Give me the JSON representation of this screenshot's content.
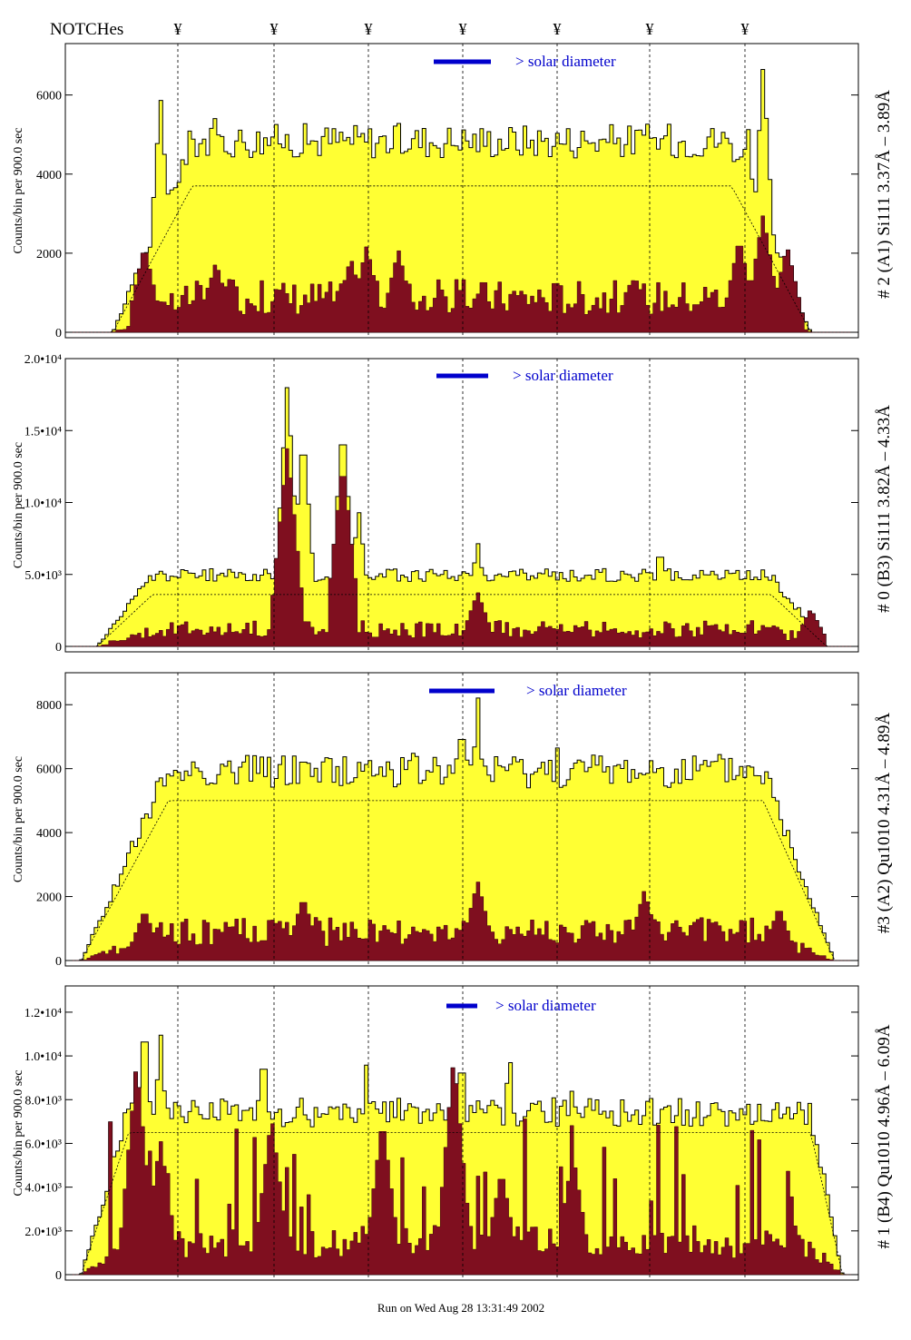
{
  "header": {
    "notches_label": "NOTCHes",
    "notch_glyph": "¥"
  },
  "footer": {
    "run_text": "Run on Wed Aug 28 13:31:49 2002"
  },
  "colors": {
    "envelope_fill": "#ffff33",
    "core_fill": "#7f0f1f",
    "solar_marker": "#0000cc",
    "outline": "#000000"
  },
  "chart_data": [
    {
      "type": "area",
      "panel_label": "# 2 (A1) Si111  3.37Å – 3.89Å",
      "ylabel": "Counts/bin per   900.0 sec",
      "solar_label": "> solar diameter",
      "yticks": [
        "0",
        "2000",
        "4000",
        "6000"
      ],
      "ylim": [
        0,
        7300
      ],
      "profile_edges": [
        0.06,
        0.16,
        0.35,
        0.65,
        0.84,
        0.94
      ],
      "peaks": [
        {
          "x": 0.12,
          "y": 6000
        },
        {
          "x": 0.19,
          "y": 5800
        },
        {
          "x": 0.26,
          "y": 5300
        },
        {
          "x": 0.36,
          "y": 5000
        },
        {
          "x": 0.4,
          "y": 5100
        },
        {
          "x": 0.5,
          "y": 5200
        },
        {
          "x": 0.62,
          "y": 4950
        },
        {
          "x": 0.73,
          "y": 5100
        },
        {
          "x": 0.81,
          "y": 5300
        },
        {
          "x": 0.88,
          "y": 6800
        },
        {
          "x": 0.86,
          "y": 5500
        }
      ],
      "envelope_level": 4900,
      "core_level": 900,
      "core_peaks": [
        {
          "x": 0.1,
          "y": 2200
        },
        {
          "x": 0.19,
          "y": 1800
        },
        {
          "x": 0.36,
          "y": 1900
        },
        {
          "x": 0.38,
          "y": 2200
        },
        {
          "x": 0.42,
          "y": 2100
        },
        {
          "x": 0.85,
          "y": 2400
        },
        {
          "x": 0.88,
          "y": 3000
        },
        {
          "x": 0.91,
          "y": 2200
        }
      ],
      "model_level": 3700
    },
    {
      "type": "area",
      "panel_label": "# 0 (B3) Si111  3.82Å – 4.33Å",
      "ylabel": "Counts/bin per   900.0 sec",
      "solar_label": "> solar diameter",
      "yticks": [
        "0",
        "5.0•10³",
        "1.0•10⁴",
        "1.5•10⁴",
        "2.0•10⁴"
      ],
      "ylim": [
        0,
        20000
      ],
      "profile_edges": [
        0.04,
        0.11,
        0.3,
        0.7,
        0.89,
        0.96
      ],
      "peaks": [
        {
          "x": 0.28,
          "y": 18400
        },
        {
          "x": 0.3,
          "y": 15000
        },
        {
          "x": 0.35,
          "y": 15800
        },
        {
          "x": 0.37,
          "y": 9500
        },
        {
          "x": 0.52,
          "y": 7300
        },
        {
          "x": 0.75,
          "y": 7000
        }
      ],
      "envelope_level": 5000,
      "core_level": 1200,
      "core_peaks": [
        {
          "x": 0.28,
          "y": 14000
        },
        {
          "x": 0.35,
          "y": 13000
        },
        {
          "x": 0.52,
          "y": 3800
        },
        {
          "x": 0.94,
          "y": 2600
        }
      ],
      "model_level": 3600
    },
    {
      "type": "area",
      "panel_label": "#3 (A2) Qu1010  4.31Å – 4.89Å",
      "ylabel": "Counts/bin per   900.0 sec",
      "solar_label": "> solar diameter",
      "yticks": [
        "0",
        "2000",
        "4000",
        "6000",
        "8000"
      ],
      "ylim": [
        0,
        9000
      ],
      "profile_edges": [
        0.02,
        0.13,
        0.28,
        0.72,
        0.88,
        0.97
      ],
      "peaks": [
        {
          "x": 0.3,
          "y": 7000
        },
        {
          "x": 0.5,
          "y": 7800
        },
        {
          "x": 0.52,
          "y": 8400
        },
        {
          "x": 0.4,
          "y": 6500
        },
        {
          "x": 0.62,
          "y": 6800
        },
        {
          "x": 0.74,
          "y": 6600
        }
      ],
      "envelope_level": 6000,
      "core_level": 900,
      "core_peaks": [
        {
          "x": 0.1,
          "y": 1600
        },
        {
          "x": 0.3,
          "y": 2000
        },
        {
          "x": 0.52,
          "y": 2500
        },
        {
          "x": 0.73,
          "y": 2200
        },
        {
          "x": 0.9,
          "y": 1700
        }
      ],
      "model_level": 5000
    },
    {
      "type": "area",
      "panel_label": "# 1 (B4) Qu1010 4.96Å – 6.09Å",
      "ylabel": "Counts/bin per   900.0 sec",
      "solar_label": "> solar diameter",
      "yticks": [
        "0",
        "2.0•10³",
        "4.0•10³",
        "6.0•10³",
        "8.0•10³",
        "1.0•10⁴",
        "1.2•10⁴"
      ],
      "ylim": [
        0,
        13200
      ],
      "profile_edges": [
        0.02,
        0.08,
        0.2,
        0.8,
        0.94,
        0.98
      ],
      "peaks": [
        {
          "x": 0.1,
          "y": 12000
        },
        {
          "x": 0.12,
          "y": 11200
        },
        {
          "x": 0.25,
          "y": 10600
        },
        {
          "x": 0.38,
          "y": 9800
        },
        {
          "x": 0.5,
          "y": 10400
        },
        {
          "x": 0.56,
          "y": 10400
        },
        {
          "x": 0.64,
          "y": 9000
        },
        {
          "x": 0.81,
          "y": 7800
        }
      ],
      "envelope_level": 7500,
      "core_level": 1500,
      "core_peaks": [
        {
          "x": 0.09,
          "y": 9800
        },
        {
          "x": 0.12,
          "y": 6200
        },
        {
          "x": 0.26,
          "y": 7300
        },
        {
          "x": 0.4,
          "y": 7200
        },
        {
          "x": 0.49,
          "y": 10000
        },
        {
          "x": 0.55,
          "y": 4800
        },
        {
          "x": 0.64,
          "y": 5600
        }
      ],
      "model_level": 6500
    }
  ]
}
